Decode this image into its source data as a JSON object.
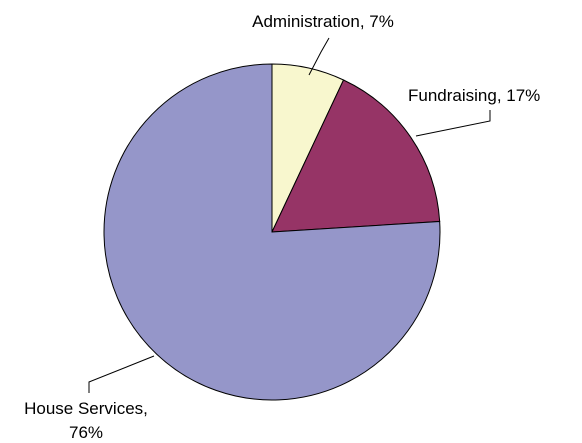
{
  "chart_data": {
    "type": "pie",
    "title": "",
    "slices": [
      {
        "label": "Administration",
        "value": 7,
        "color": "#f8f7ce",
        "label_lines": [
          "Administration, 7%"
        ]
      },
      {
        "label": "Fundraising",
        "value": 17,
        "color": "#963466",
        "label_lines": [
          "Fundraising, 17%"
        ]
      },
      {
        "label": "House Services",
        "value": 76,
        "color": "#9596c9",
        "label_lines": [
          "House Services,",
          "76%"
        ]
      }
    ],
    "start_angle": "12 o'clock",
    "direction": "clockwise"
  }
}
